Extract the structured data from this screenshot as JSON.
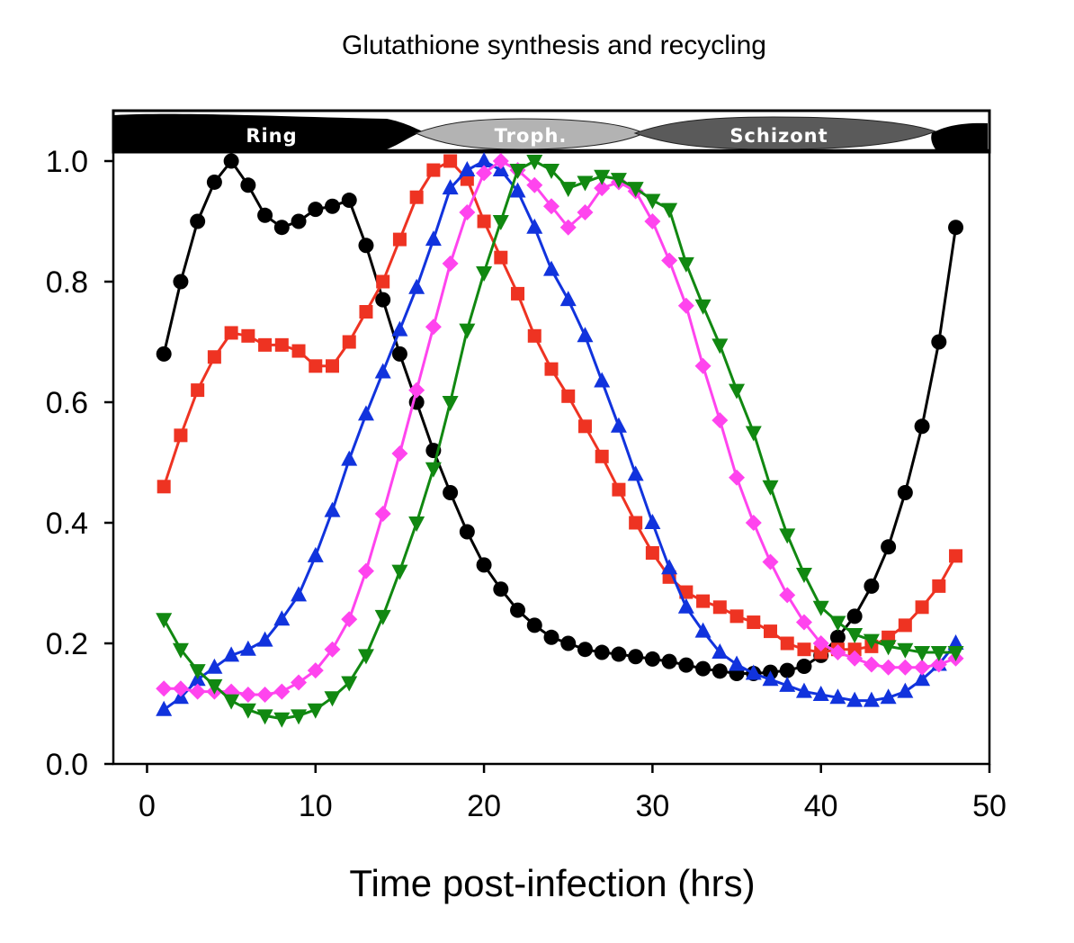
{
  "chart_data": {
    "type": "line",
    "title": "Glutathione synthesis and recycling",
    "xlabel": "Time post-infection (hrs)",
    "ylabel": "",
    "xlim": [
      -2,
      50
    ],
    "ylim": [
      0,
      1.0
    ],
    "xticks": [
      0,
      10,
      20,
      30,
      40,
      50
    ],
    "xtick_labels": [
      "0",
      "10",
      "20",
      "30",
      "40",
      "50"
    ],
    "yticks": [
      0,
      0.2,
      0.4,
      0.6,
      0.8,
      1.0
    ],
    "ytick_labels": [
      "0.0",
      "0.2",
      "0.4",
      "0.6",
      "0.8",
      "1.0"
    ],
    "grid": false,
    "legend": "none",
    "stage_band": {
      "labels": [
        "Ring",
        "Troph.",
        "Schizont"
      ],
      "colors": [
        "#000000",
        "#b3b3b3",
        "#5a5a5a"
      ]
    },
    "x": [
      1,
      2,
      3,
      4,
      5,
      6,
      7,
      8,
      9,
      10,
      11,
      12,
      13,
      14,
      15,
      16,
      17,
      18,
      19,
      20,
      21,
      22,
      23,
      24,
      25,
      26,
      27,
      28,
      29,
      30,
      31,
      32,
      33,
      34,
      35,
      36,
      37,
      38,
      39,
      40,
      41,
      42,
      43,
      44,
      45,
      46,
      47,
      48
    ],
    "series": [
      {
        "color": "#000000",
        "marker": "circle",
        "values": [
          0.68,
          0.8,
          0.9,
          0.965,
          1.0,
          0.96,
          0.91,
          0.89,
          0.9,
          0.92,
          0.925,
          0.935,
          0.86,
          0.77,
          0.68,
          0.6,
          0.52,
          0.45,
          0.385,
          0.33,
          0.29,
          0.255,
          0.23,
          0.21,
          0.2,
          0.19,
          0.185,
          0.182,
          0.178,
          0.174,
          0.17,
          0.164,
          0.158,
          0.154,
          0.15,
          0.15,
          0.152,
          0.155,
          0.162,
          0.18,
          0.21,
          0.245,
          0.295,
          0.36,
          0.45,
          0.56,
          0.7,
          0.89
        ]
      },
      {
        "color": "#ee3322",
        "marker": "square",
        "values": [
          0.46,
          0.545,
          0.62,
          0.675,
          0.715,
          0.71,
          0.695,
          0.695,
          0.685,
          0.66,
          0.66,
          0.7,
          0.75,
          0.8,
          0.87,
          0.94,
          0.985,
          1.0,
          0.97,
          0.9,
          0.84,
          0.78,
          0.71,
          0.655,
          0.61,
          0.56,
          0.51,
          0.455,
          0.4,
          0.35,
          0.31,
          0.285,
          0.27,
          0.26,
          0.245,
          0.235,
          0.22,
          0.2,
          0.19,
          0.185,
          0.19,
          0.19,
          0.195,
          0.21,
          0.23,
          0.26,
          0.295,
          0.345
        ]
      },
      {
        "color": "#1133dd",
        "marker": "triangle-up",
        "values": [
          0.09,
          0.11,
          0.14,
          0.16,
          0.18,
          0.19,
          0.205,
          0.24,
          0.28,
          0.345,
          0.42,
          0.505,
          0.58,
          0.65,
          0.72,
          0.79,
          0.87,
          0.955,
          0.985,
          1.0,
          0.985,
          0.95,
          0.89,
          0.82,
          0.77,
          0.71,
          0.635,
          0.56,
          0.48,
          0.4,
          0.325,
          0.26,
          0.22,
          0.185,
          0.165,
          0.15,
          0.14,
          0.13,
          0.12,
          0.115,
          0.11,
          0.105,
          0.105,
          0.11,
          0.12,
          0.14,
          0.165,
          0.2
        ]
      },
      {
        "color": "#ff44ee",
        "marker": "diamond",
        "values": [
          0.125,
          0.125,
          0.12,
          0.12,
          0.12,
          0.115,
          0.115,
          0.12,
          0.135,
          0.155,
          0.19,
          0.24,
          0.32,
          0.415,
          0.515,
          0.62,
          0.725,
          0.83,
          0.915,
          0.98,
          1.0,
          0.985,
          0.96,
          0.925,
          0.89,
          0.915,
          0.955,
          0.965,
          0.95,
          0.9,
          0.835,
          0.76,
          0.66,
          0.57,
          0.475,
          0.4,
          0.335,
          0.28,
          0.235,
          0.2,
          0.185,
          0.175,
          0.165,
          0.16,
          0.16,
          0.16,
          0.165,
          0.175
        ]
      },
      {
        "color": "#118811",
        "marker": "triangle-down",
        "values": [
          0.24,
          0.19,
          0.155,
          0.13,
          0.105,
          0.09,
          0.08,
          0.075,
          0.08,
          0.09,
          0.11,
          0.135,
          0.18,
          0.245,
          0.32,
          0.4,
          0.49,
          0.6,
          0.72,
          0.815,
          0.9,
          0.985,
          1.0,
          0.985,
          0.955,
          0.965,
          0.975,
          0.97,
          0.955,
          0.935,
          0.92,
          0.83,
          0.76,
          0.695,
          0.62,
          0.55,
          0.46,
          0.38,
          0.315,
          0.26,
          0.235,
          0.215,
          0.205,
          0.195,
          0.19,
          0.185,
          0.185,
          0.185
        ]
      }
    ]
  }
}
